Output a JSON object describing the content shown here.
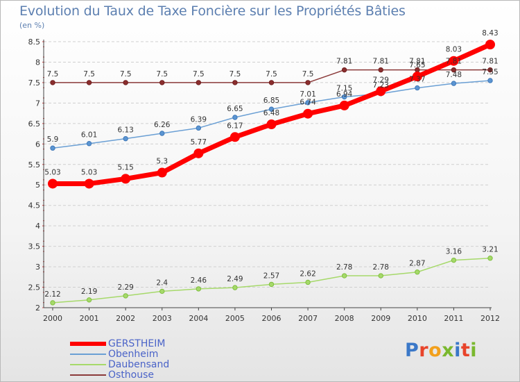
{
  "title": "Evolution du Taux de Taxe Foncière sur les Propriétés Bâties",
  "unit_label": "(en %)",
  "brand": {
    "text": "Proxiti",
    "letter_colors": [
      "#3b78c8",
      "#e8442a",
      "#f2a01c",
      "#7ab82e",
      "#3b78c8",
      "#e8442a",
      "#7ab82e"
    ]
  },
  "chart_data": {
    "type": "line",
    "x": [
      "2000",
      "2001",
      "2002",
      "2003",
      "2004",
      "2005",
      "2006",
      "2007",
      "2008",
      "2009",
      "2010",
      "2011",
      "2012"
    ],
    "ylim": [
      2,
      8.5
    ],
    "yticks": [
      "2",
      "2.5",
      "3",
      "3.5",
      "4",
      "4.5",
      "5",
      "5.5",
      "6",
      "6.5",
      "7",
      "7.5",
      "8",
      "8.5"
    ],
    "grid": "horizontal dashed",
    "series": [
      {
        "name": "GERSTHEIM",
        "color": "#ff0000",
        "values": [
          5.03,
          5.03,
          5.15,
          5.3,
          5.77,
          6.17,
          6.48,
          6.74,
          6.94,
          7.29,
          7.65,
          8.03,
          8.43
        ],
        "labels": [
          "5.03",
          "5.03",
          "5.15",
          "5.3",
          "5.77",
          "6.17",
          "6.48",
          "6.74",
          "6.94",
          "7.29",
          "7.65",
          "8.03",
          "8.43"
        ]
      },
      {
        "name": "Obenheim",
        "color": "#6a9fd4",
        "values": [
          5.9,
          6.01,
          6.13,
          6.26,
          6.39,
          6.65,
          6.85,
          7.01,
          7.15,
          7.23,
          7.37,
          7.48,
          7.55
        ],
        "labels": [
          "5.9",
          "6.01",
          "6.13",
          "6.26",
          "6.39",
          "6.65",
          "6.85",
          "7.01",
          "7.15",
          "7.23",
          "7.37",
          "7.48",
          "7.55"
        ]
      },
      {
        "name": "Daubensand",
        "color": "#a6d96a",
        "values": [
          2.12,
          2.19,
          2.29,
          2.4,
          2.46,
          2.49,
          2.57,
          2.62,
          2.78,
          2.78,
          2.87,
          3.16,
          3.21
        ],
        "labels": [
          "2.12",
          "2.19",
          "2.29",
          "2.4",
          "2.46",
          "2.49",
          "2.57",
          "2.62",
          "2.78",
          "2.78",
          "2.87",
          "3.16",
          "3.21"
        ]
      },
      {
        "name": "Osthouse",
        "color": "#8b3a3a",
        "values": [
          7.5,
          7.5,
          7.5,
          7.5,
          7.5,
          7.5,
          7.5,
          7.5,
          7.81,
          7.81,
          7.81,
          7.81,
          7.81
        ],
        "labels": [
          "7.5",
          "7.5",
          "7.5",
          "7.5",
          "7.5",
          "7.5",
          "7.5",
          "7.5",
          "7.81",
          "7.81",
          "7.81",
          "7.81",
          "7.81"
        ]
      }
    ]
  }
}
